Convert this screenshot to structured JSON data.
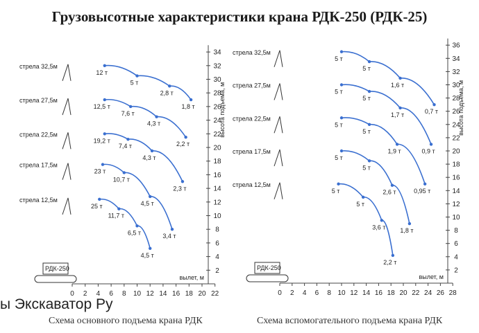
{
  "title": "Грузовысотные характеристики крана РДК-250 (РДК-25)",
  "watermark": "ы Экскаватор Ру",
  "captions": {
    "left": "Схема основного подъема крана РДК",
    "right": "Схема вспомогательного подъема крана РДК"
  },
  "crane_label": "РДК-250",
  "chart_data": [
    {
      "type": "line",
      "xlabel": "вылет, м",
      "ylabel": "высота подъема, м",
      "xticks": [
        0,
        2,
        4,
        6,
        8,
        10,
        12,
        14,
        16,
        18,
        20,
        22
      ],
      "yticks": [
        2,
        4,
        6,
        8,
        10,
        12,
        14,
        16,
        18,
        20,
        22,
        24,
        26,
        28,
        30,
        32,
        34
      ],
      "xlim": [
        0,
        22
      ],
      "ylim": [
        0,
        35
      ],
      "series": [
        {
          "name": "стрела 32,5м",
          "points": [
            [
              5,
              32
            ],
            [
              10,
              30.5
            ],
            [
              15,
              29
            ],
            [
              18.3,
              27
            ]
          ],
          "labels": [
            "12 т",
            "5 т",
            "2,8 т",
            "1,8 т"
          ]
        },
        {
          "name": "стрела 27,5м",
          "points": [
            [
              5,
              27
            ],
            [
              9,
              26
            ],
            [
              13,
              24.5
            ],
            [
              17.5,
              21.5
            ]
          ],
          "labels": [
            "12,5 т",
            "7,6 т",
            "4,3 т",
            "2,2 т"
          ]
        },
        {
          "name": "стрела 22,5м",
          "points": [
            [
              5,
              22
            ],
            [
              8.6,
              21.2
            ],
            [
              12.3,
              19.5
            ],
            [
              17,
              15
            ]
          ],
          "labels": [
            "19,2 т",
            "7,4 т",
            "4,3 т",
            "2,3 т"
          ]
        },
        {
          "name": "стрела 17,5м",
          "points": [
            [
              4.7,
              17.5
            ],
            [
              8,
              16.3
            ],
            [
              12,
              12.8
            ],
            [
              15.4,
              8
            ]
          ],
          "labels": [
            "23 т",
            "10,7 т",
            "4,5 т",
            "3,4 т"
          ]
        },
        {
          "name": "стрела 12,5м",
          "points": [
            [
              4.2,
              12.4
            ],
            [
              7.2,
              11
            ],
            [
              10,
              8.5
            ],
            [
              12,
              5.2
            ]
          ],
          "labels": [
            "25 т",
            "11,7 т",
            "6,5 т",
            "4,5 т"
          ]
        }
      ]
    },
    {
      "type": "line",
      "xlabel": "вылет, м",
      "ylabel": "высота подъема, м",
      "xticks": [
        0,
        2,
        4,
        6,
        8,
        10,
        12,
        14,
        16,
        18,
        20,
        22,
        24,
        26,
        28
      ],
      "yticks": [
        2,
        4,
        6,
        8,
        10,
        12,
        14,
        16,
        18,
        20,
        22,
        24,
        26,
        28,
        30,
        32,
        34,
        36
      ],
      "xlim": [
        0,
        28
      ],
      "ylim": [
        0,
        37
      ],
      "series": [
        {
          "name": "стрела 32,5м",
          "points": [
            [
              10,
              35
            ],
            [
              14.5,
              33.5
            ],
            [
              19.5,
              31
            ],
            [
              25,
              27
            ]
          ],
          "labels": [
            "5 т",
            "5 т",
            "1,6 т",
            "0,7 т"
          ]
        },
        {
          "name": "стрела 27,5м",
          "points": [
            [
              10,
              30
            ],
            [
              14.5,
              29
            ],
            [
              19.5,
              26.5
            ],
            [
              24.5,
              21
            ]
          ],
          "labels": [
            "5 т",
            "5 т",
            "1,7 т",
            "0,9 т"
          ]
        },
        {
          "name": "стрела 22,5м",
          "points": [
            [
              10,
              25
            ],
            [
              14.5,
              24
            ],
            [
              19,
              21
            ],
            [
              23.5,
              15
            ]
          ],
          "labels": [
            "5 т",
            "5 т",
            "1,9 т",
            "0,95 т"
          ]
        },
        {
          "name": "стрела 17,5м",
          "points": [
            [
              10,
              20
            ],
            [
              14.5,
              18.5
            ],
            [
              18.2,
              14.8
            ],
            [
              21,
              9
            ]
          ],
          "labels": [
            "5 т",
            "5 т",
            "2,6 т",
            "1,8 т"
          ]
        },
        {
          "name": "стрела 12,5м",
          "points": [
            [
              9.5,
              15
            ],
            [
              13.5,
              13
            ],
            [
              16.5,
              9.5
            ],
            [
              18.3,
              4.2
            ]
          ],
          "labels": [
            "5 т",
            "5 т",
            "3,6 т",
            "2,2 т"
          ]
        }
      ]
    }
  ]
}
